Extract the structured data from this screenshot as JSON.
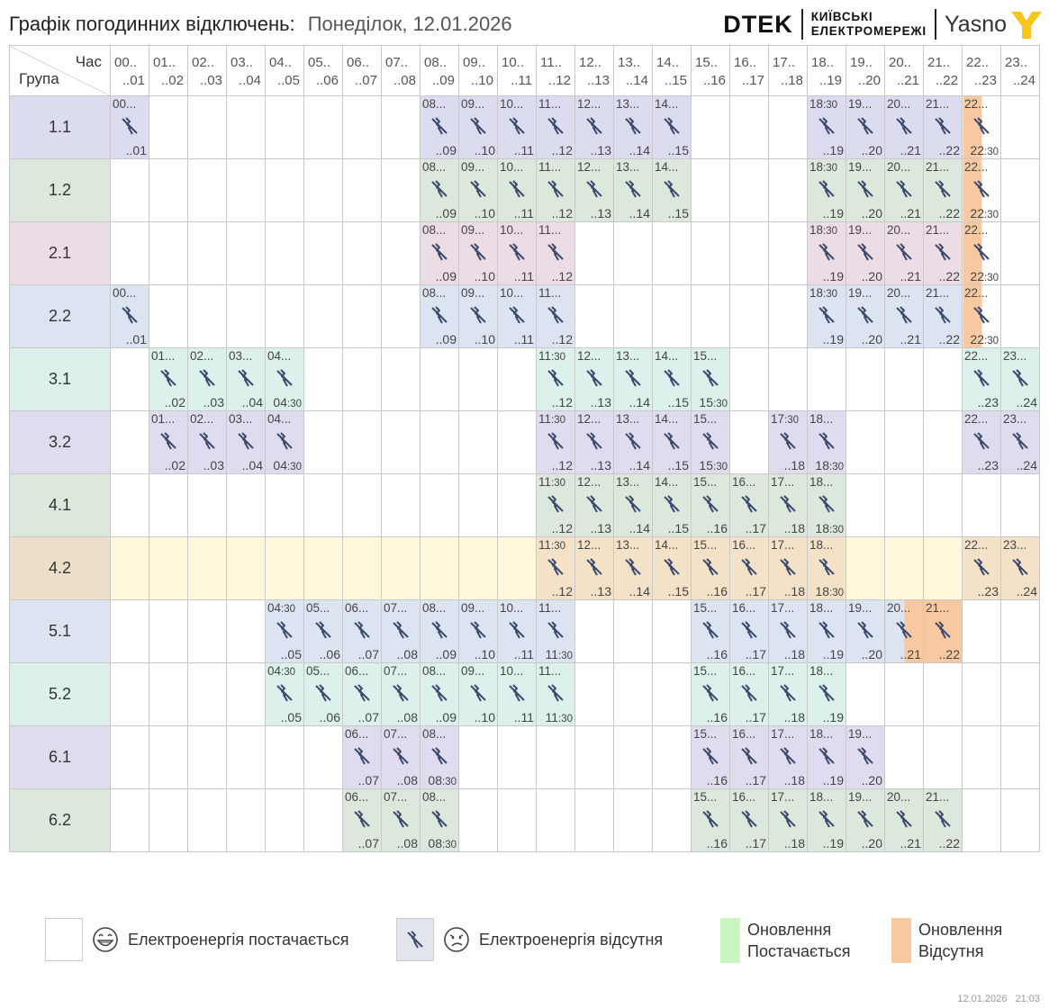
{
  "header": {
    "title": "Графік погодинних відключень:",
    "date": "Понеділок, 12.01.2026",
    "logo_dtek": "DTEK",
    "logo_kyiv_line1": "КИЇВСЬКІ",
    "logo_kyiv_line2": "ЕЛЕКТРОМЕРЕЖІ",
    "logo_yasno": "Yasno"
  },
  "table": {
    "corner_top": "Час",
    "corner_bottom": "Група",
    "hours": [
      {
        "top": "00..",
        "bottom": "..01"
      },
      {
        "top": "01..",
        "bottom": "..02"
      },
      {
        "top": "02..",
        "bottom": "..03"
      },
      {
        "top": "03..",
        "bottom": "..04"
      },
      {
        "top": "04..",
        "bottom": "..05"
      },
      {
        "top": "05..",
        "bottom": "..06"
      },
      {
        "top": "06..",
        "bottom": "..07"
      },
      {
        "top": "07..",
        "bottom": "..08"
      },
      {
        "top": "08..",
        "bottom": "..09"
      },
      {
        "top": "09..",
        "bottom": "..10"
      },
      {
        "top": "10..",
        "bottom": "..11"
      },
      {
        "top": "11..",
        "bottom": "..12"
      },
      {
        "top": "12..",
        "bottom": "..13"
      },
      {
        "top": "13..",
        "bottom": "..14"
      },
      {
        "top": "14..",
        "bottom": "..15"
      },
      {
        "top": "15..",
        "bottom": "..16"
      },
      {
        "top": "16..",
        "bottom": "..17"
      },
      {
        "top": "17..",
        "bottom": "..18"
      },
      {
        "top": "18..",
        "bottom": "..19"
      },
      {
        "top": "19..",
        "bottom": "..20"
      },
      {
        "top": "20..",
        "bottom": "..21"
      },
      {
        "top": "21..",
        "bottom": "..22"
      },
      {
        "top": "22..",
        "bottom": "..23"
      },
      {
        "top": "23..",
        "bottom": "..24"
      }
    ],
    "groups": [
      {
        "name": "1.1",
        "color": "#dcdcf0",
        "selected": false,
        "cells": [
          {
            "col": 0,
            "top": "00...",
            "bottom": "..01"
          },
          {
            "col": 8,
            "top": "08...",
            "bottom": "..09"
          },
          {
            "col": 9,
            "top": "09...",
            "bottom": "..10"
          },
          {
            "col": 10,
            "top": "10...",
            "bottom": "..11"
          },
          {
            "col": 11,
            "top": "11...",
            "bottom": "..12"
          },
          {
            "col": 12,
            "top": "12...",
            "bottom": "..13"
          },
          {
            "col": 13,
            "top": "13...",
            "bottom": "..14"
          },
          {
            "col": 14,
            "top": "14...",
            "bottom": "..15"
          },
          {
            "col": 18,
            "top": "18",
            "topSmall": ":30",
            "bottom": "..19"
          },
          {
            "col": 19,
            "top": "19...",
            "bottom": "..20"
          },
          {
            "col": 20,
            "top": "20...",
            "bottom": "..21"
          },
          {
            "col": 21,
            "top": "21...",
            "bottom": "..22"
          },
          {
            "col": 22,
            "top": "22...",
            "bottom": "22",
            "bottomSmall": ":30",
            "update": true,
            "split": "left"
          }
        ]
      },
      {
        "name": "1.2",
        "color": "#dce8dc",
        "selected": false,
        "cells": [
          {
            "col": 8,
            "top": "08...",
            "bottom": "..09"
          },
          {
            "col": 9,
            "top": "09...",
            "bottom": "..10"
          },
          {
            "col": 10,
            "top": "10...",
            "bottom": "..11"
          },
          {
            "col": 11,
            "top": "11...",
            "bottom": "..12"
          },
          {
            "col": 12,
            "top": "12...",
            "bottom": "..13"
          },
          {
            "col": 13,
            "top": "13...",
            "bottom": "..14"
          },
          {
            "col": 14,
            "top": "14...",
            "bottom": "..15"
          },
          {
            "col": 18,
            "top": "18",
            "topSmall": ":30",
            "bottom": "..19"
          },
          {
            "col": 19,
            "top": "19...",
            "bottom": "..20"
          },
          {
            "col": 20,
            "top": "20...",
            "bottom": "..21"
          },
          {
            "col": 21,
            "top": "21...",
            "bottom": "..22"
          },
          {
            "col": 22,
            "top": "22...",
            "bottom": "22",
            "bottomSmall": ":30",
            "update": true,
            "split": "left"
          }
        ]
      },
      {
        "name": "2.1",
        "color": "#ecdce6",
        "selected": false,
        "cells": [
          {
            "col": 8,
            "top": "08...",
            "bottom": "..09"
          },
          {
            "col": 9,
            "top": "09...",
            "bottom": "..10"
          },
          {
            "col": 10,
            "top": "10...",
            "bottom": "..11"
          },
          {
            "col": 11,
            "top": "11...",
            "bottom": "..12"
          },
          {
            "col": 18,
            "top": "18",
            "topSmall": ":30",
            "bottom": "..19"
          },
          {
            "col": 19,
            "top": "19...",
            "bottom": "..20"
          },
          {
            "col": 20,
            "top": "20...",
            "bottom": "..21"
          },
          {
            "col": 21,
            "top": "21...",
            "bottom": "..22"
          },
          {
            "col": 22,
            "top": "22...",
            "bottom": "22",
            "bottomSmall": ":30",
            "update": true,
            "split": "left"
          }
        ]
      },
      {
        "name": "2.2",
        "color": "#dce4f2",
        "selected": false,
        "cells": [
          {
            "col": 0,
            "top": "00...",
            "bottom": "..01"
          },
          {
            "col": 8,
            "top": "08...",
            "bottom": "..09"
          },
          {
            "col": 9,
            "top": "09...",
            "bottom": "..10"
          },
          {
            "col": 10,
            "top": "10...",
            "bottom": "..11"
          },
          {
            "col": 11,
            "top": "11...",
            "bottom": "..12"
          },
          {
            "col": 18,
            "top": "18",
            "topSmall": ":30",
            "bottom": "..19"
          },
          {
            "col": 19,
            "top": "19...",
            "bottom": "..20"
          },
          {
            "col": 20,
            "top": "20...",
            "bottom": "..21"
          },
          {
            "col": 21,
            "top": "21...",
            "bottom": "..22"
          },
          {
            "col": 22,
            "top": "22...",
            "bottom": "22",
            "bottomSmall": ":30",
            "update": true,
            "split": "left"
          }
        ]
      },
      {
        "name": "3.1",
        "color": "#dcf0ec",
        "selected": false,
        "cells": [
          {
            "col": 1,
            "top": "01...",
            "bottom": "..02"
          },
          {
            "col": 2,
            "top": "02...",
            "bottom": "..03"
          },
          {
            "col": 3,
            "top": "03...",
            "bottom": "..04"
          },
          {
            "col": 4,
            "top": "04...",
            "bottom": "04",
            "bottomSmall": ":30"
          },
          {
            "col": 11,
            "top": "11",
            "topSmall": ":30",
            "bottom": "..12"
          },
          {
            "col": 12,
            "top": "12...",
            "bottom": "..13"
          },
          {
            "col": 13,
            "top": "13...",
            "bottom": "..14"
          },
          {
            "col": 14,
            "top": "14...",
            "bottom": "..15"
          },
          {
            "col": 15,
            "top": "15...",
            "bottom": "15",
            "bottomSmall": ":30"
          },
          {
            "col": 22,
            "top": "22...",
            "bottom": "..23"
          },
          {
            "col": 23,
            "top": "23...",
            "bottom": "..24"
          }
        ]
      },
      {
        "name": "3.2",
        "color": "#e0dcf0",
        "selected": false,
        "cells": [
          {
            "col": 1,
            "top": "01...",
            "bottom": "..02"
          },
          {
            "col": 2,
            "top": "02...",
            "bottom": "..03"
          },
          {
            "col": 3,
            "top": "03...",
            "bottom": "..04"
          },
          {
            "col": 4,
            "top": "04...",
            "bottom": "04",
            "bottomSmall": ":30"
          },
          {
            "col": 11,
            "top": "11",
            "topSmall": ":30",
            "bottom": "..12"
          },
          {
            "col": 12,
            "top": "12...",
            "bottom": "..13"
          },
          {
            "col": 13,
            "top": "13...",
            "bottom": "..14"
          },
          {
            "col": 14,
            "top": "14...",
            "bottom": "..15"
          },
          {
            "col": 15,
            "top": "15...",
            "bottom": "15",
            "bottomSmall": ":30"
          },
          {
            "col": 17,
            "top": "17",
            "topSmall": ":30",
            "bottom": "..18"
          },
          {
            "col": 18,
            "top": "18...",
            "bottom": "18",
            "bottomSmall": ":30"
          },
          {
            "col": 22,
            "top": "22...",
            "bottom": "..23"
          },
          {
            "col": 23,
            "top": "23...",
            "bottom": "..24"
          }
        ]
      },
      {
        "name": "4.1",
        "color": "#dce8dc",
        "selected": false,
        "cells": [
          {
            "col": 11,
            "top": "11",
            "topSmall": ":30",
            "bottom": "..12"
          },
          {
            "col": 12,
            "top": "12...",
            "bottom": "..13"
          },
          {
            "col": 13,
            "top": "13...",
            "bottom": "..14"
          },
          {
            "col": 14,
            "top": "14...",
            "bottom": "..15"
          },
          {
            "col": 15,
            "top": "15...",
            "bottom": "..16"
          },
          {
            "col": 16,
            "top": "16...",
            "bottom": "..17"
          },
          {
            "col": 17,
            "top": "17...",
            "bottom": "..18"
          },
          {
            "col": 18,
            "top": "18...",
            "bottom": "18",
            "bottomSmall": ":30"
          }
        ]
      },
      {
        "name": "4.2",
        "color": "#ecdec8",
        "selected": true,
        "rowColor": "#fff8dc",
        "cells": [
          {
            "col": 11,
            "top": "11",
            "topSmall": ":30",
            "bottom": "..12"
          },
          {
            "col": 12,
            "top": "12...",
            "bottom": "..13"
          },
          {
            "col": 13,
            "top": "13...",
            "bottom": "..14"
          },
          {
            "col": 14,
            "top": "14...",
            "bottom": "..15"
          },
          {
            "col": 15,
            "top": "15...",
            "bottom": "..16"
          },
          {
            "col": 16,
            "top": "16...",
            "bottom": "..17"
          },
          {
            "col": 17,
            "top": "17...",
            "bottom": "..18"
          },
          {
            "col": 18,
            "top": "18...",
            "bottom": "18",
            "bottomSmall": ":30"
          },
          {
            "col": 22,
            "top": "22...",
            "bottom": "..23"
          },
          {
            "col": 23,
            "top": "23...",
            "bottom": "..24"
          }
        ]
      },
      {
        "name": "5.1",
        "color": "#dce4f2",
        "selected": false,
        "cells": [
          {
            "col": 4,
            "top": "04",
            "topSmall": ":30",
            "bottom": "..05"
          },
          {
            "col": 5,
            "top": "05...",
            "bottom": "..06"
          },
          {
            "col": 6,
            "top": "06...",
            "bottom": "..07"
          },
          {
            "col": 7,
            "top": "07...",
            "bottom": "..08"
          },
          {
            "col": 8,
            "top": "08...",
            "bottom": "..09"
          },
          {
            "col": 9,
            "top": "09...",
            "bottom": "..10"
          },
          {
            "col": 10,
            "top": "10...",
            "bottom": "..11"
          },
          {
            "col": 11,
            "top": "11...",
            "bottom": "11",
            "bottomSmall": ":30"
          },
          {
            "col": 15,
            "top": "15...",
            "bottom": "..16"
          },
          {
            "col": 16,
            "top": "16...",
            "bottom": "..17"
          },
          {
            "col": 17,
            "top": "17...",
            "bottom": "..18"
          },
          {
            "col": 18,
            "top": "18...",
            "bottom": "..19"
          },
          {
            "col": 19,
            "top": "19...",
            "bottom": "..20"
          },
          {
            "col": 20,
            "top": "20...",
            "bottom": "..21",
            "update": true,
            "split": "right"
          },
          {
            "col": 21,
            "top": "21...",
            "bottom": "..22",
            "update": true,
            "split": "full"
          }
        ]
      },
      {
        "name": "5.2",
        "color": "#dcf0ec",
        "selected": false,
        "cells": [
          {
            "col": 4,
            "top": "04",
            "topSmall": ":30",
            "bottom": "..05"
          },
          {
            "col": 5,
            "top": "05...",
            "bottom": "..06"
          },
          {
            "col": 6,
            "top": "06...",
            "bottom": "..07"
          },
          {
            "col": 7,
            "top": "07...",
            "bottom": "..08"
          },
          {
            "col": 8,
            "top": "08...",
            "bottom": "..09"
          },
          {
            "col": 9,
            "top": "09...",
            "bottom": "..10"
          },
          {
            "col": 10,
            "top": "10...",
            "bottom": "..11"
          },
          {
            "col": 11,
            "top": "11...",
            "bottom": "11",
            "bottomSmall": ":30"
          },
          {
            "col": 15,
            "top": "15...",
            "bottom": "..16"
          },
          {
            "col": 16,
            "top": "16...",
            "bottom": "..17"
          },
          {
            "col": 17,
            "top": "17...",
            "bottom": "..18"
          },
          {
            "col": 18,
            "top": "18...",
            "bottom": "..19"
          }
        ]
      },
      {
        "name": "6.1",
        "color": "#e0dcf0",
        "selected": false,
        "cells": [
          {
            "col": 6,
            "top": "06...",
            "bottom": "..07"
          },
          {
            "col": 7,
            "top": "07...",
            "bottom": "..08"
          },
          {
            "col": 8,
            "top": "08...",
            "bottom": "08",
            "bottomSmall": ":30"
          },
          {
            "col": 15,
            "top": "15...",
            "bottom": "..16"
          },
          {
            "col": 16,
            "top": "16...",
            "bottom": "..17"
          },
          {
            "col": 17,
            "top": "17...",
            "bottom": "..18"
          },
          {
            "col": 18,
            "top": "18...",
            "bottom": "..19"
          },
          {
            "col": 19,
            "top": "19...",
            "bottom": "..20"
          }
        ]
      },
      {
        "name": "6.2",
        "color": "#dce8dc",
        "selected": false,
        "cells": [
          {
            "col": 6,
            "top": "06...",
            "bottom": "..07"
          },
          {
            "col": 7,
            "top": "07...",
            "bottom": "..08"
          },
          {
            "col": 8,
            "top": "08...",
            "bottom": "08",
            "bottomSmall": ":30"
          },
          {
            "col": 15,
            "top": "15...",
            "bottom": "..16"
          },
          {
            "col": 16,
            "top": "16...",
            "bottom": "..17"
          },
          {
            "col": 17,
            "top": "17...",
            "bottom": "..18"
          },
          {
            "col": 18,
            "top": "18...",
            "bottom": "..19"
          },
          {
            "col": 19,
            "top": "19...",
            "bottom": "..20"
          },
          {
            "col": 20,
            "top": "20...",
            "bottom": "..21"
          },
          {
            "col": 21,
            "top": "21...",
            "bottom": "..22"
          }
        ]
      }
    ],
    "outage_icon": "power-off-icon",
    "update_color": "#f8c9a0",
    "update_selected_color": "#f4c9a6"
  },
  "legend": {
    "power_on": "Електроенергія постачається",
    "power_off": "Електроенергія відсутня",
    "update_on_line1": "Оновлення",
    "update_on_line2": "Постачається",
    "update_off_line1": "Оновлення",
    "update_off_line2": "Відсутня",
    "update_on_color": "#c8f5c0",
    "update_off_color": "#f8c9a0",
    "power_on_icon": "happy-face-icon",
    "power_off_icon": "sad-face-icon"
  },
  "footer": {
    "date": "12.01.2026",
    "time": "21:03"
  }
}
